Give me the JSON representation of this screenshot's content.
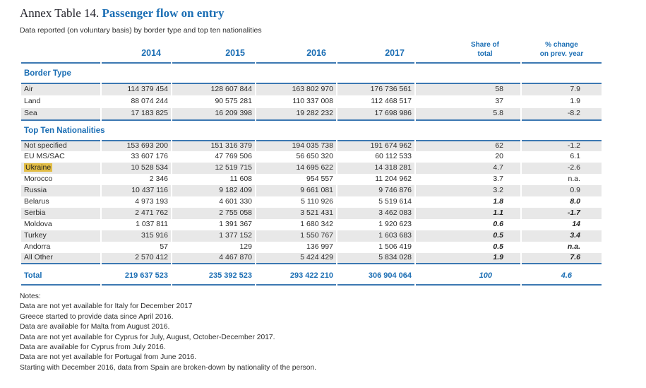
{
  "page": {
    "title_prefix": "Annex Table 14.",
    "title_main": "Passenger flow on entry",
    "subtitle": "Data reported (on voluntary basis) by border type and top ten nationalities"
  },
  "colors": {
    "accent_blue": "#1b6eb4",
    "rule_blue": "#3c78b2",
    "row_gray": "#e8e8e8",
    "highlight_gold": "#e2bd45"
  },
  "table": {
    "col_headers": {
      "y2014": "2014",
      "y2015": "2015",
      "y2016": "2016",
      "y2017": "2017",
      "share": "Share of\ntotal",
      "change": "% change\non prev. year"
    },
    "sections": [
      {
        "name": "Border Type",
        "rows": [
          {
            "label": "Air",
            "y2014": "114 379 454",
            "y2015": "128 607 844",
            "y2016": "163 802 970",
            "y2017": "176 736 561",
            "share": "58",
            "change": "7.9"
          },
          {
            "label": "Land",
            "y2014": "88 074 244",
            "y2015": "90 575 281",
            "y2016": "110 337 008",
            "y2017": "112 468 517",
            "share": "37",
            "change": "1.9"
          },
          {
            "label": "Sea",
            "y2014": "17 183 825",
            "y2015": "16 209 398",
            "y2016": "19 282 232",
            "y2017": "17 698 986",
            "share": "5.8",
            "change": "-8.2"
          }
        ]
      },
      {
        "name": "Top Ten Nationalities",
        "rows": [
          {
            "label": "Not specified",
            "y2014": "153 693 200",
            "y2015": "151 316 379",
            "y2016": "194 035 738",
            "y2017": "191 674 962",
            "share": "62",
            "change": "-1.2"
          },
          {
            "label": "EU MS/SAC",
            "y2014": "33 607 176",
            "y2015": "47 769 506",
            "y2016": "56 650 320",
            "y2017": "60 112 533",
            "share": "20",
            "change": "6.1"
          },
          {
            "label": "Ukraine",
            "y2014": "10 528 534",
            "y2015": "12 519 715",
            "y2016": "14 695 622",
            "y2017": "14 318 281",
            "share": "4.7",
            "change": "-2.6",
            "highlighted": true
          },
          {
            "label": "Morocco",
            "y2014": "2 346",
            "y2015": "11 608",
            "y2016": "954 557",
            "y2017": "11 204 962",
            "share": "3.7",
            "change": "n.a."
          },
          {
            "label": "Russia",
            "y2014": "10 437 116",
            "y2015": "9 182 409",
            "y2016": "9 661 081",
            "y2017": "9 746 876",
            "share": "3.2",
            "change": "0.9"
          },
          {
            "label": "Belarus",
            "y2014": "4 973 193",
            "y2015": "4 601 330",
            "y2016": "5 110 926",
            "y2017": "5 519 614",
            "share": "1.8",
            "change": "8.0",
            "emphasis": true
          },
          {
            "label": "Serbia",
            "y2014": "2 471 762",
            "y2015": "2 755 058",
            "y2016": "3 521 431",
            "y2017": "3 462 083",
            "share": "1.1",
            "change": "-1.7",
            "emphasis": true
          },
          {
            "label": "Moldova",
            "y2014": "1 037 811",
            "y2015": "1 391 367",
            "y2016": "1 680 342",
            "y2017": "1 920 623",
            "share": "0.6",
            "change": "14",
            "emphasis": true
          },
          {
            "label": "Turkey",
            "y2014": "315 916",
            "y2015": "1 377 152",
            "y2016": "1 550 767",
            "y2017": "1 603 683",
            "share": "0.5",
            "change": "3.4",
            "emphasis": true
          },
          {
            "label": "Andorra",
            "y2014": "57",
            "y2015": "129",
            "y2016": "136 997",
            "y2017": "1 506 419",
            "share": "0.5",
            "change": "n.a.",
            "emphasis": true
          },
          {
            "label": "All Other",
            "y2014": "2 570 412",
            "y2015": "4 467 870",
            "y2016": "5 424 429",
            "y2017": "5 834 028",
            "share": "1.9",
            "change": "7.6",
            "emphasis": true
          }
        ]
      }
    ],
    "total": {
      "label": "Total",
      "y2014": "219 637 523",
      "y2015": "235 392 523",
      "y2016": "293 422 210",
      "y2017": "306 904 064",
      "share": "100",
      "change": "4.6"
    }
  },
  "notes": {
    "heading": "Notes:",
    "lines": [
      "Data are not yet available for Italy for December 2017",
      "Greece started to provide data since April 2016.",
      "Data are available for Malta from August 2016.",
      "Data are not yet available for Cyprus for July, August, October-December 2017.",
      "Data are available for Cyprus from July 2016.",
      "Data are not yet available for Portugal from June 2016.",
      "Starting with December 2016, data from Spain are broken-down by nationality of the person."
    ]
  }
}
